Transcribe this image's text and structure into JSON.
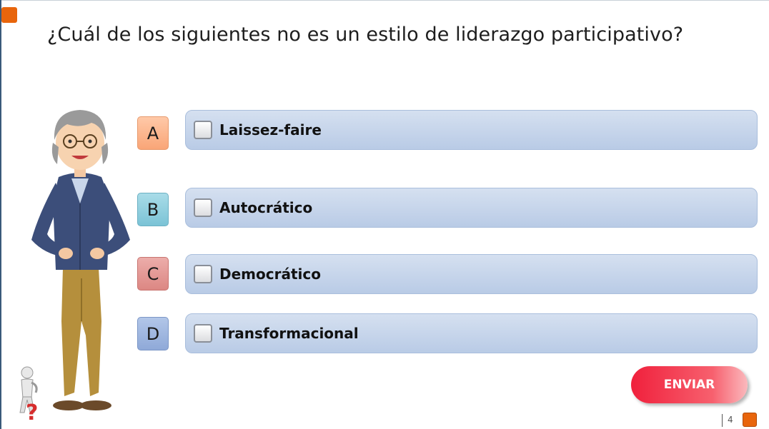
{
  "question": "¿Cuál de los siguientes no es un estilo de liderazgo participativo?",
  "options": [
    {
      "letter": "A",
      "label": "Laissez-faire",
      "checked": false
    },
    {
      "letter": "B",
      "label": "Autocrático",
      "checked": false
    },
    {
      "letter": "C",
      "label": "Democrático",
      "checked": false
    },
    {
      "letter": "D",
      "label": "Transformacional",
      "checked": false
    }
  ],
  "submit_label": "ENVIAR",
  "page_number": "4",
  "colors": {
    "accent_orange": "#e8650c",
    "option_blue": "#c6d5ec",
    "submit_red": "#f0203c",
    "letter_a": "#f9a577",
    "letter_b": "#7bc3d6",
    "letter_c": "#dc8783",
    "letter_d": "#8fa9d8"
  },
  "icons": {
    "presenter": "teacher-character-icon",
    "help": "help-question-figure-icon"
  }
}
